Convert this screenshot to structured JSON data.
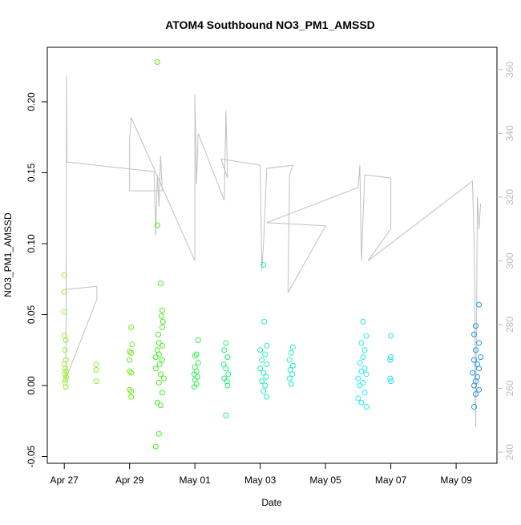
{
  "chart_data": {
    "type": "scatter",
    "title": "ATOM4 Southbound NO3_PM1_AMSSD",
    "x_label": "Date",
    "y_label": "NO3_PM1_AMSSD",
    "xlim": [
      -0.52,
      13.25
    ],
    "xticks": [
      {
        "value": 0,
        "label": "Apr 27"
      },
      {
        "value": 2,
        "label": "Apr 29"
      },
      {
        "value": 4,
        "label": "May 01"
      },
      {
        "value": 6,
        "label": "May 03"
      },
      {
        "value": 8,
        "label": "May 05"
      },
      {
        "value": 10,
        "label": "May 07"
      },
      {
        "value": 12,
        "label": "May 09"
      }
    ],
    "ylim": [
      -0.0548,
      0.2384
    ],
    "yticks": [
      -0.05,
      {
        "value": 0,
        "label": "0.00"
      },
      0.05,
      {
        "value": 0.1,
        "label": "0.10"
      },
      {
        "value": 0.15,
        "label": "0.15"
      },
      {
        "value": 0.2,
        "label": "0.20"
      }
    ],
    "y2lim": [
      236.5,
      367
    ],
    "y2ticks": [
      240,
      260,
      280,
      300,
      320,
      340,
      360
    ],
    "series": [
      {
        "color": "#99ee33",
        "x": [
          0.0,
          0.0,
          0.0,
          0.0,
          0.05,
          0.02,
          0.05,
          0.0,
          0.03,
          0.05,
          0.02,
          0.06,
          0.04,
          0.02,
          0.05
        ],
        "values": [
          0.078,
          0.066,
          0.052,
          0.035,
          0.032,
          0.025,
          0.018,
          0.015,
          0.012,
          0.01,
          0.008,
          0.006,
          0.004,
          0.002,
          -0.001
        ]
      },
      {
        "color": "#88ee22",
        "x": [
          0.98,
          0.98,
          0.98
        ],
        "values": [
          0.015,
          0.011,
          0.003
        ]
      },
      {
        "color": "#66ee11",
        "x": [
          2.05,
          2.08,
          2.0,
          2.05,
          2.0,
          2.0,
          2.05,
          2.0,
          2.05,
          2.05
        ],
        "values": [
          0.041,
          0.029,
          0.024,
          0.023,
          0.018,
          0.01,
          0.009,
          -0.003,
          -0.004,
          -0.008
        ]
      },
      {
        "color": "#44ee22",
        "x": [
          2.85,
          2.85,
          2.95,
          3.0,
          2.98,
          3.02,
          3.0,
          2.88,
          2.9,
          3.0,
          2.85,
          2.9,
          2.8,
          3.0,
          2.92,
          2.8,
          2.95,
          3.05,
          2.9,
          3.0,
          2.85,
          2.95,
          2.9,
          2.8
        ],
        "values": [
          0.228,
          0.113,
          0.072,
          0.053,
          0.049,
          0.045,
          0.041,
          0.036,
          0.03,
          0.028,
          0.025,
          0.022,
          0.02,
          0.018,
          0.015,
          0.012,
          0.008,
          0.005,
          0.002,
          -0.005,
          -0.012,
          -0.014,
          -0.034,
          -0.043
        ]
      },
      {
        "color": "#33ee55",
        "x": [
          4.1,
          4.05,
          4.0,
          4.1,
          4.0,
          4.05,
          3.98,
          4.08,
          4.0,
          4.05,
          3.98
        ],
        "values": [
          0.032,
          0.022,
          0.021,
          0.016,
          0.013,
          0.01,
          0.008,
          0.006,
          0.004,
          0.001,
          -0.001
        ]
      },
      {
        "color": "#22ee77",
        "x": [
          4.95,
          4.9,
          5.0,
          4.88,
          4.95,
          5.02,
          4.9,
          4.98,
          5.0,
          4.95
        ],
        "values": [
          0.03,
          0.025,
          0.02,
          0.015,
          0.012,
          0.008,
          0.005,
          0.003,
          0.0,
          -0.021
        ]
      },
      {
        "color": "#22eebb",
        "x": [
          6.1,
          6.12,
          6.2,
          6.0,
          6.15,
          6.05,
          6.2,
          6.0,
          6.1,
          6.18,
          6.05,
          6.15,
          6.1,
          6.2
        ],
        "values": [
          0.085,
          0.045,
          0.028,
          0.025,
          0.022,
          0.018,
          0.015,
          0.012,
          0.009,
          0.006,
          0.003,
          0.0,
          -0.004,
          -0.008
        ]
      },
      {
        "color": "#22eecc",
        "x": [
          7.0,
          6.95,
          6.9,
          7.0,
          6.92,
          6.98,
          6.9,
          6.95
        ],
        "values": [
          0.027,
          0.023,
          0.018,
          0.014,
          0.011,
          0.008,
          0.005,
          0.001
        ]
      },
      {
        "color": "#22eeee",
        "x": [
          9.15,
          9.25,
          9.1,
          9.2,
          9.15,
          9.05,
          9.2,
          9.1,
          9.25,
          9.0,
          9.15,
          9.05,
          9.2,
          9.0,
          9.1,
          9.25
        ],
        "values": [
          0.045,
          0.035,
          0.03,
          0.025,
          0.02,
          0.016,
          0.012,
          0.01,
          0.008,
          0.005,
          0.002,
          0.0,
          -0.005,
          -0.009,
          -0.012,
          -0.015
        ]
      },
      {
        "color": "#22ddee",
        "x": [
          10.0,
          10.0,
          9.98,
          9.98,
          10.0
        ],
        "values": [
          0.035,
          0.02,
          0.018,
          0.005,
          0.003
        ]
      },
      {
        "color": "#2299ee",
        "x": [
          12.7,
          12.6,
          12.55,
          12.7,
          12.6,
          12.75,
          12.55,
          12.65,
          12.7,
          12.5,
          12.65,
          12.6,
          12.55,
          12.7,
          12.6,
          12.55
        ],
        "values": [
          0.057,
          0.042,
          0.036,
          0.03,
          0.025,
          0.02,
          0.018,
          0.015,
          0.012,
          0.009,
          0.006,
          0.003,
          0.0,
          -0.003,
          -0.006,
          -0.015
        ]
      }
    ],
    "line": {
      "axis": "y2",
      "color": "#c0c0c0",
      "x": [
        0.0,
        1.0,
        1.0,
        0.05,
        0.07,
        0.08,
        0.1,
        2.75,
        2.8,
        2.85,
        2.9,
        2.95,
        3.0,
        2.0,
        2.0,
        2.05,
        4.0,
        4.0,
        4.05,
        4.1,
        4.9,
        4.95,
        5.0,
        4.8,
        6.0,
        6.05,
        6.1,
        6.2,
        7.0,
        6.9,
        6.85,
        8.0,
        6.2,
        9.0,
        9.05,
        9.1,
        9.2,
        10.0,
        10.0,
        9.3,
        12.5,
        12.55,
        12.6,
        12.65,
        12.7,
        12.75
      ],
      "values": [
        291,
        292,
        288,
        263,
        358,
        331,
        331,
        328,
        308,
        327,
        317,
        333,
        322,
        322,
        338,
        345,
        300,
        352,
        324,
        340,
        319,
        347,
        326,
        332,
        330,
        297,
        305,
        329,
        330,
        327,
        290,
        311,
        312,
        323,
        330,
        300,
        327,
        326,
        310,
        300,
        325,
        306,
        248,
        320,
        310,
        318
      ]
    }
  }
}
